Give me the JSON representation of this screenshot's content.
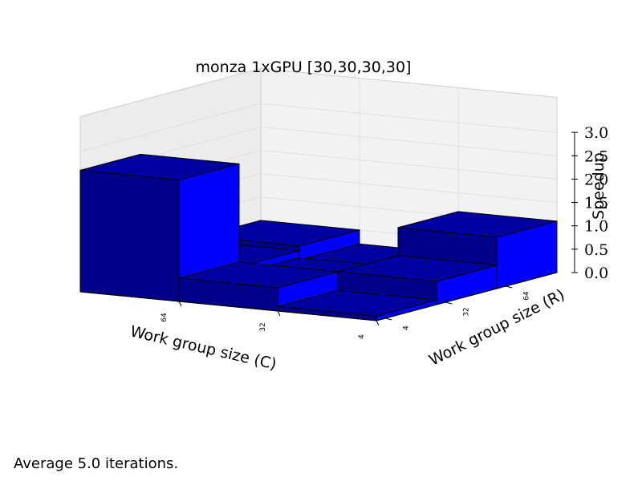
{
  "chart_data": {
    "type": "bar3d",
    "title": "monza 1xGPU [30,30,30,30]",
    "xlabel": "Work group size (C)",
    "ylabel": "Work group size (R)",
    "zlabel": "Speedup",
    "x_categories": [
      "64",
      "32",
      "4"
    ],
    "y_categories": [
      "4",
      "32",
      "64"
    ],
    "zlim": [
      0.0,
      3.0
    ],
    "z_ticks": [
      "0.0",
      "0.5",
      "1.0",
      "1.5",
      "2.0",
      "2.5",
      "3.0"
    ],
    "values": [
      {
        "c": "64",
        "r": "4",
        "speedup": 2.6
      },
      {
        "c": "64",
        "r": "32",
        "speedup": 0.4
      },
      {
        "c": "64",
        "r": "64",
        "speedup": 0.5
      },
      {
        "c": "32",
        "r": "4",
        "speedup": 0.5
      },
      {
        "c": "32",
        "r": "32",
        "speedup": 0.25
      },
      {
        "c": "32",
        "r": "64",
        "speedup": 0.2
      },
      {
        "c": "4",
        "r": "4",
        "speedup": 0.1
      },
      {
        "c": "4",
        "r": "32",
        "speedup": 0.5
      },
      {
        "c": "4",
        "r": "64",
        "speedup": 1.1
      }
    ],
    "colors": {
      "top": "#0000a0",
      "front": "#00008a",
      "side": "#0000ff",
      "pane": "#f2f2f2",
      "grid": "#e0e0e0"
    }
  },
  "footnote": "Average 5.0 iterations."
}
